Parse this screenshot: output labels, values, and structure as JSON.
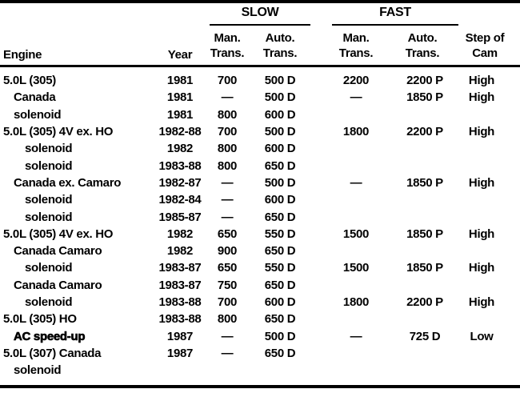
{
  "page": {
    "background": "#ffffff",
    "text_color": "#000000"
  },
  "table": {
    "group_headers": {
      "slow": "SLOW",
      "fast": "FAST"
    },
    "column_headers": {
      "engine": "Engine",
      "year": "Year",
      "man_line1": "Man.",
      "man_line2": "Trans.",
      "auto_line1": "Auto.",
      "auto_line2": "Trans.",
      "step_line1": "Step of",
      "step_line2": "Cam"
    },
    "rows": [
      {
        "engine": "5.0L (305)",
        "indent": 0,
        "bold": false,
        "year": "1981",
        "slow_man": "700",
        "slow_auto": "500 D",
        "fast_man": "2200",
        "fast_auto": "2200 P",
        "cam": "High"
      },
      {
        "engine": "Canada",
        "indent": 1,
        "bold": false,
        "year": "1981",
        "slow_man": "—",
        "slow_auto": "500 D",
        "fast_man": "—",
        "fast_auto": "1850 P",
        "cam": "High"
      },
      {
        "engine": "solenoid",
        "indent": 1,
        "bold": false,
        "year": "1981",
        "slow_man": "800",
        "slow_auto": "600 D",
        "fast_man": "",
        "fast_auto": "",
        "cam": ""
      },
      {
        "engine": "5.0L (305) 4V ex. HO",
        "indent": 0,
        "bold": false,
        "year": "1982-88",
        "slow_man": "700",
        "slow_auto": "500 D",
        "fast_man": "1800",
        "fast_auto": "2200 P",
        "cam": "High"
      },
      {
        "engine": "solenoid",
        "indent": 2,
        "bold": false,
        "year": "1982",
        "slow_man": "800",
        "slow_auto": "600 D",
        "fast_man": "",
        "fast_auto": "",
        "cam": ""
      },
      {
        "engine": "solenoid",
        "indent": 2,
        "bold": false,
        "year": "1983-88",
        "slow_man": "800",
        "slow_auto": "650 D",
        "fast_man": "",
        "fast_auto": "",
        "cam": ""
      },
      {
        "engine": "Canada ex. Camaro",
        "indent": 1,
        "bold": false,
        "year": "1982-87",
        "slow_man": "—",
        "slow_auto": "500 D",
        "fast_man": "—",
        "fast_auto": "1850 P",
        "cam": "High"
      },
      {
        "engine": "solenoid",
        "indent": 2,
        "bold": false,
        "year": "1982-84",
        "slow_man": "—",
        "slow_auto": "600 D",
        "fast_man": "",
        "fast_auto": "",
        "cam": ""
      },
      {
        "engine": "solenoid",
        "indent": 2,
        "bold": false,
        "year": "1985-87",
        "slow_man": "—",
        "slow_auto": "650 D",
        "fast_man": "",
        "fast_auto": "",
        "cam": ""
      },
      {
        "engine": "5.0L (305) 4V ex. HO",
        "indent": 0,
        "bold": false,
        "year": "1982",
        "slow_man": "650",
        "slow_auto": "550 D",
        "fast_man": "1500",
        "fast_auto": "1850 P",
        "cam": "High"
      },
      {
        "engine": "Canada Camaro",
        "indent": 1,
        "bold": false,
        "year": "1982",
        "slow_man": "900",
        "slow_auto": "650 D",
        "fast_man": "",
        "fast_auto": "",
        "cam": ""
      },
      {
        "engine": "solenoid",
        "indent": 2,
        "bold": false,
        "year": "1983-87",
        "slow_man": "650",
        "slow_auto": "550 D",
        "fast_man": "1500",
        "fast_auto": "1850 P",
        "cam": "High"
      },
      {
        "engine": "Canada Camaro",
        "indent": 1,
        "bold": false,
        "year": "1983-87",
        "slow_man": "750",
        "slow_auto": "650 D",
        "fast_man": "",
        "fast_auto": "",
        "cam": ""
      },
      {
        "engine": "solenoid",
        "indent": 2,
        "bold": false,
        "year": "1983-88",
        "slow_man": "700",
        "slow_auto": "600 D",
        "fast_man": "1800",
        "fast_auto": "2200 P",
        "cam": "High"
      },
      {
        "engine": "5.0L (305) HO",
        "indent": 0,
        "bold": false,
        "year": "1983-88",
        "slow_man": "800",
        "slow_auto": "650 D",
        "fast_man": "",
        "fast_auto": "",
        "cam": ""
      },
      {
        "engine": "AC speed-up",
        "indent": 1,
        "bold": true,
        "year": "1987",
        "slow_man": "—",
        "slow_auto": "500 D",
        "fast_man": "—",
        "fast_auto": "725 D",
        "cam": "Low"
      },
      {
        "engine": "5.0L (307) Canada",
        "indent": 0,
        "bold": false,
        "year": "1987",
        "slow_man": "—",
        "slow_auto": "650 D",
        "fast_man": "",
        "fast_auto": "",
        "cam": ""
      },
      {
        "engine": "solenoid",
        "indent": 1,
        "bold": false,
        "year": "",
        "slow_man": "",
        "slow_auto": "",
        "fast_man": "",
        "fast_auto": "",
        "cam": ""
      }
    ]
  }
}
